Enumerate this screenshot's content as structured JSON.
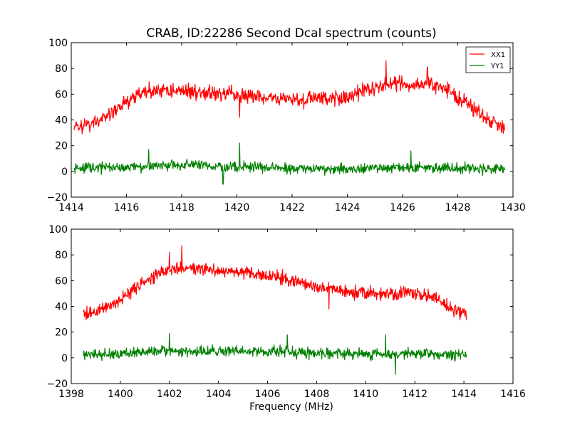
{
  "chart_data": [
    {
      "type": "line",
      "title": "CRAB, ID:22286 Second Dcal spectrum (counts)",
      "xlabel": "",
      "ylabel": "",
      "xlim": [
        1414,
        1430
      ],
      "ylim": [
        -20,
        100
      ],
      "xticks": [
        "1414",
        "1416",
        "1418",
        "1420",
        "1422",
        "1424",
        "1426",
        "1428",
        "1430"
      ],
      "yticks": [
        "−20",
        "0",
        "20",
        "40",
        "60",
        "80",
        "100"
      ],
      "grid": false,
      "legend": {
        "position": "top-right",
        "entries": [
          "XX1",
          "YY1"
        ]
      },
      "series": [
        {
          "name": "XX1",
          "color": "#ff0000",
          "noise": 6,
          "profile": [
            [
              1414.1,
              34
            ],
            [
              1414.8,
              37
            ],
            [
              1415.4,
              44
            ],
            [
              1415.9,
              52
            ],
            [
              1416.4,
              60
            ],
            [
              1417.0,
              63
            ],
            [
              1418.0,
              63
            ],
            [
              1419.0,
              61
            ],
            [
              1420.0,
              59
            ],
            [
              1421.0,
              57
            ],
            [
              1422.0,
              56
            ],
            [
              1423.0,
              57
            ],
            [
              1424.0,
              58
            ],
            [
              1424.8,
              63
            ],
            [
              1425.5,
              68
            ],
            [
              1426.4,
              68
            ],
            [
              1427.0,
              68
            ],
            [
              1427.6,
              63
            ],
            [
              1428.2,
              55
            ],
            [
              1428.8,
              45
            ],
            [
              1429.3,
              38
            ],
            [
              1429.7,
              35
            ]
          ],
          "spikes": [
            [
              1425.4,
              86
            ],
            [
              1426.9,
              81
            ],
            [
              1420.1,
              42
            ]
          ]
        },
        {
          "name": "YY1",
          "color": "#008000",
          "noise": 4,
          "profile": [
            [
              1414.1,
              2
            ],
            [
              1415.0,
              3
            ],
            [
              1416.0,
              3
            ],
            [
              1417.0,
              5
            ],
            [
              1418.0,
              5
            ],
            [
              1419.0,
              4
            ],
            [
              1420.0,
              4
            ],
            [
              1421.0,
              3
            ],
            [
              1422.0,
              2
            ],
            [
              1423.0,
              2
            ],
            [
              1424.0,
              2
            ],
            [
              1425.0,
              3
            ],
            [
              1426.0,
              3
            ],
            [
              1427.0,
              3
            ],
            [
              1428.0,
              3
            ],
            [
              1429.0,
              2
            ],
            [
              1429.7,
              2
            ]
          ],
          "spikes": [
            [
              1420.1,
              22
            ],
            [
              1416.8,
              17
            ],
            [
              1419.5,
              -10
            ],
            [
              1426.3,
              16
            ]
          ]
        }
      ]
    },
    {
      "type": "line",
      "title": "",
      "xlabel": "Frequency (MHz)",
      "ylabel": "",
      "xlim": [
        1398,
        1416
      ],
      "ylim": [
        -20,
        100
      ],
      "xticks": [
        "1398",
        "1400",
        "1402",
        "1404",
        "1406",
        "1408",
        "1410",
        "1412",
        "1414",
        "1416"
      ],
      "yticks": [
        "−20",
        "0",
        "20",
        "40",
        "60",
        "80",
        "100"
      ],
      "grid": false,
      "series": [
        {
          "color": "#ff0000",
          "noise": 5,
          "profile": [
            [
              1398.5,
              34
            ],
            [
              1399.0,
              36
            ],
            [
              1399.6,
              40
            ],
            [
              1400.2,
              48
            ],
            [
              1400.8,
              57
            ],
            [
              1401.5,
              64
            ],
            [
              1402.0,
              68
            ],
            [
              1402.5,
              71
            ],
            [
              1403.0,
              70
            ],
            [
              1404.0,
              68
            ],
            [
              1405.0,
              66
            ],
            [
              1406.0,
              64
            ],
            [
              1407.0,
              60
            ],
            [
              1408.0,
              55
            ],
            [
              1409.0,
              52
            ],
            [
              1410.0,
              50
            ],
            [
              1411.0,
              50
            ],
            [
              1412.0,
              51
            ],
            [
              1412.7,
              47
            ],
            [
              1413.2,
              42
            ],
            [
              1413.6,
              37
            ],
            [
              1414.1,
              34
            ]
          ],
          "spikes": [
            [
              1402.5,
              87
            ],
            [
              1402.0,
              82
            ],
            [
              1408.5,
              38
            ]
          ]
        },
        {
          "color": "#008000",
          "noise": 4,
          "profile": [
            [
              1398.5,
              2
            ],
            [
              1399.5,
              3
            ],
            [
              1400.5,
              4
            ],
            [
              1401.5,
              5
            ],
            [
              1402.5,
              5
            ],
            [
              1403.5,
              5
            ],
            [
              1404.5,
              5
            ],
            [
              1405.5,
              5
            ],
            [
              1406.5,
              5
            ],
            [
              1407.5,
              4
            ],
            [
              1408.5,
              4
            ],
            [
              1409.5,
              3
            ],
            [
              1410.5,
              3
            ],
            [
              1411.5,
              3
            ],
            [
              1412.5,
              3
            ],
            [
              1413.5,
              2
            ],
            [
              1414.1,
              3
            ]
          ],
          "spikes": [
            [
              1402.0,
              19
            ],
            [
              1406.8,
              18
            ],
            [
              1411.2,
              -13
            ],
            [
              1410.8,
              18
            ]
          ]
        }
      ]
    }
  ]
}
